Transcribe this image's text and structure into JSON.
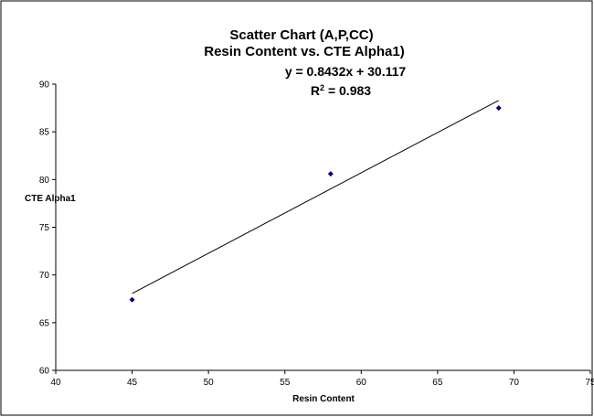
{
  "chart_data": {
    "type": "scatter",
    "title": "Scatter Chart (A,P,CC)",
    "subtitle": "Resin Content vs. CTE Alpha1)",
    "xlabel": "Resin Content",
    "ylabel": "CTE Alpha1",
    "xlim": [
      40,
      75
    ],
    "ylim": [
      60,
      90
    ],
    "x_ticks": [
      40,
      45,
      50,
      55,
      60,
      65,
      70,
      75
    ],
    "y_ticks": [
      60,
      65,
      70,
      75,
      80,
      85,
      90
    ],
    "grid": false,
    "legend": "none",
    "points": [
      {
        "x": 45,
        "y": 67.4
      },
      {
        "x": 58,
        "y": 80.6
      },
      {
        "x": 69,
        "y": 87.5
      }
    ],
    "trendline": {
      "slope": 0.8432,
      "intercept": 30.117,
      "x_range": [
        45,
        69
      ],
      "equation_label": "y = 0.8432x + 30.117",
      "r2_prefix": "R",
      "r2_suffix": " = 0.983"
    },
    "colors": {
      "marker": "#000080",
      "line": "#000000",
      "axis": "#000000",
      "frame": "#000000"
    }
  }
}
